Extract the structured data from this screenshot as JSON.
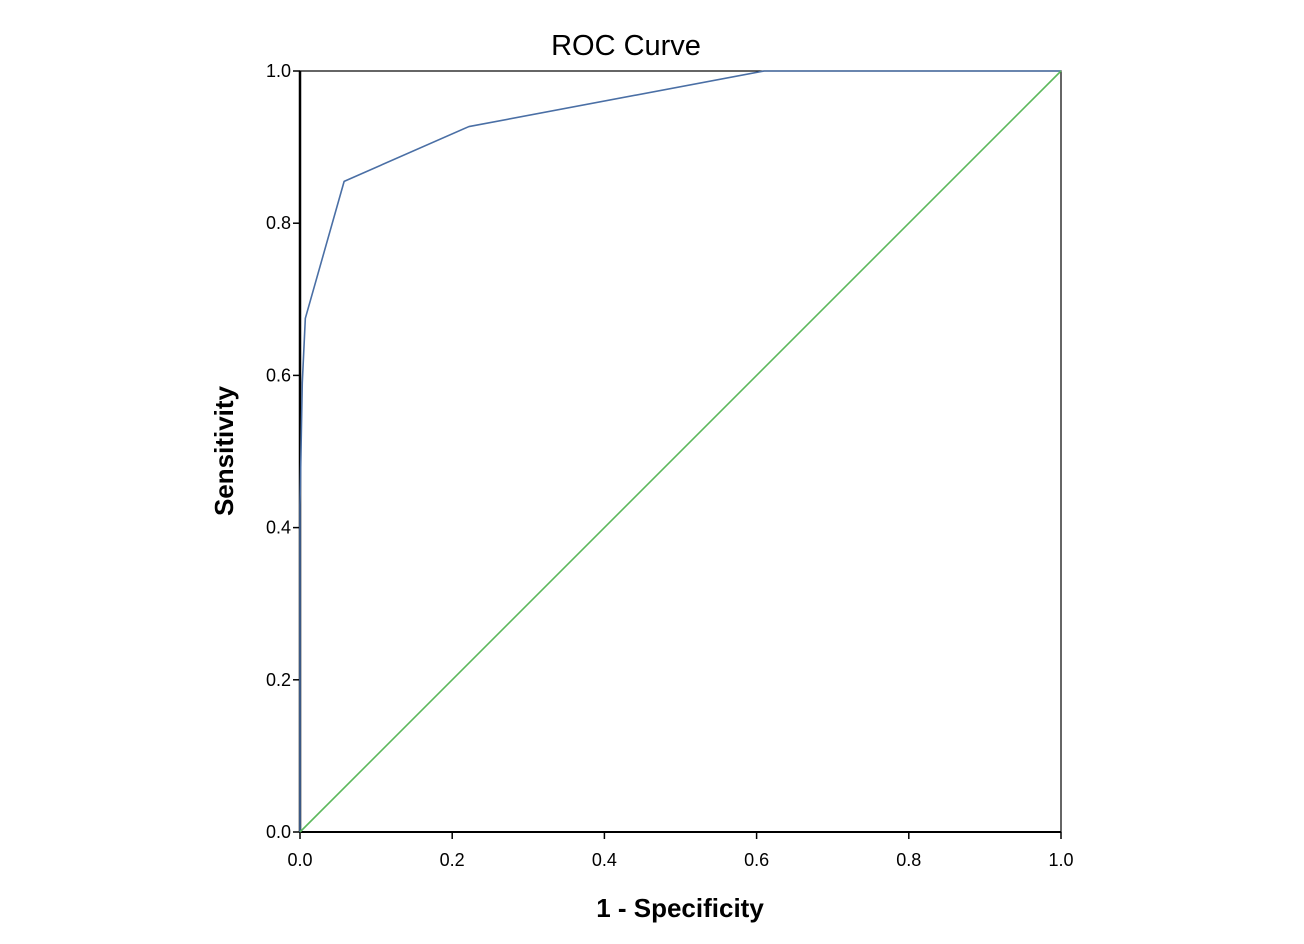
{
  "chart_data": {
    "type": "line",
    "title": "ROC Curve",
    "xlabel": "1 - Specificity",
    "ylabel": "Sensitivity",
    "xlim": [
      0,
      1
    ],
    "ylim": [
      0,
      1
    ],
    "x_ticks": [
      "0.0",
      "0.2",
      "0.4",
      "0.6",
      "0.8",
      "1.0"
    ],
    "y_ticks": [
      "0.0",
      "0.2",
      "0.4",
      "0.6",
      "0.8",
      "1.0"
    ],
    "grid": false,
    "legend": "none",
    "series": [
      {
        "color": "#4a6fa5",
        "points": [
          {
            "x": 0.0,
            "y": 0.0
          },
          {
            "x": 0.0,
            "y": 0.43
          },
          {
            "x": 0.003,
            "y": 0.59
          },
          {
            "x": 0.007,
            "y": 0.675
          },
          {
            "x": 0.058,
            "y": 0.855
          },
          {
            "x": 0.222,
            "y": 0.927
          },
          {
            "x": 0.61,
            "y": 1.0
          },
          {
            "x": 1.0,
            "y": 1.0
          }
        ]
      },
      {
        "color": "#5cb85c",
        "points": [
          {
            "x": 0.0,
            "y": 0.0
          },
          {
            "x": 1.0,
            "y": 1.0
          }
        ]
      }
    ]
  }
}
